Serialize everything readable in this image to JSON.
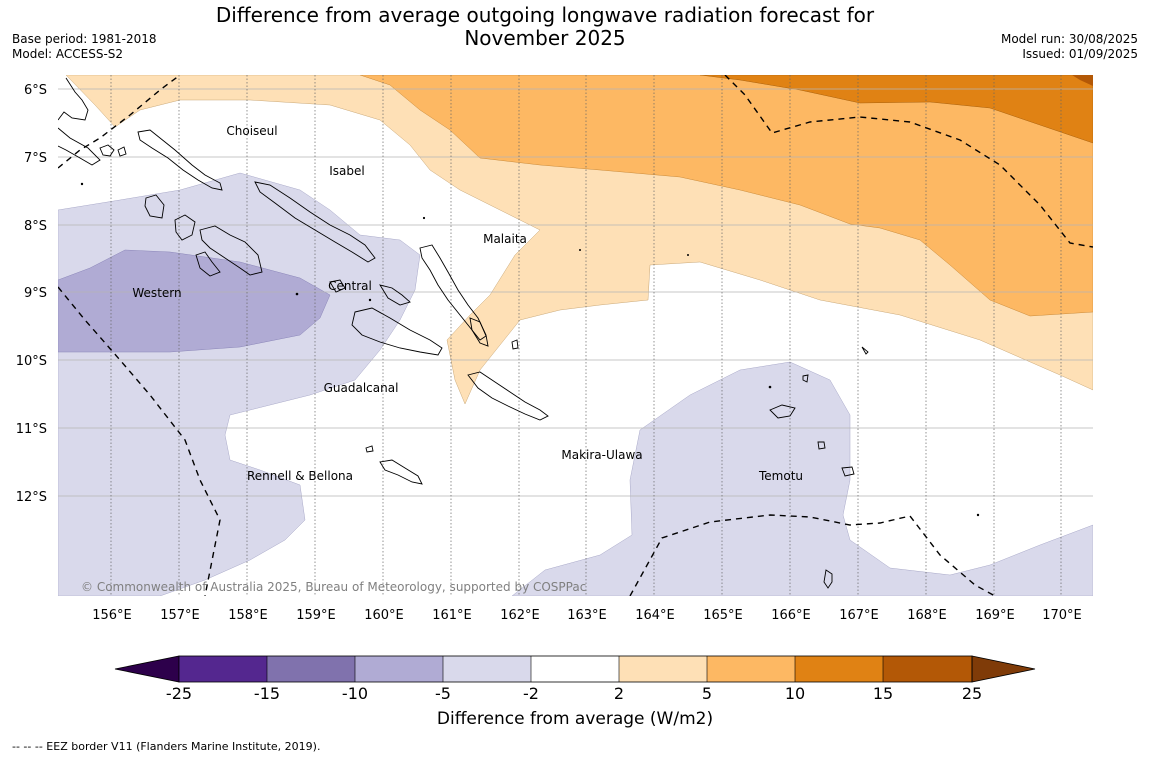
{
  "header": {
    "title_line1": "Difference from average outgoing longwave radiation forecast for",
    "title_line2": "November 2025",
    "base_period": "Base period: 1981-2018",
    "model": "Model: ACCESS-S2",
    "model_run": "Model run: 30/08/2025",
    "issued": "Issued: 01/09/2025"
  },
  "map": {
    "lat_labels": [
      "6°S",
      "7°S",
      "8°S",
      "9°S",
      "10°S",
      "11°S",
      "12°S"
    ],
    "lon_labels": [
      "156°E",
      "157°E",
      "158°E",
      "159°E",
      "160°E",
      "161°E",
      "162°E",
      "163°E",
      "164°E",
      "165°E",
      "166°E",
      "167°E",
      "168°E",
      "169°E",
      "170°E"
    ],
    "regions": [
      "Choiseul",
      "Isabel",
      "Malaita",
      "Western",
      "Central",
      "Guadalcanal",
      "Makira-Ulawa",
      "Rennell & Bellona",
      "Temotu"
    ],
    "credit": "© Commonwealth of Australia 2025, Bureau of Meteorology, supported by COSPPac"
  },
  "colorbar": {
    "ticks": [
      "-25",
      "-15",
      "-10",
      "-5",
      "-2",
      "2",
      "5",
      "10",
      "15",
      "25"
    ],
    "colors": [
      "#54278f",
      "#8072ad",
      "#b0abd4",
      "#d9d9eb",
      "#ffffff",
      "#fee0b6",
      "#fdb863",
      "#e08214",
      "#b35806"
    ],
    "under_color": "#2d004b",
    "over_color": "#7f3b08",
    "label": "Difference from average (W/m2)"
  },
  "legend": {
    "eez_note": "--  --  -- EEZ border V11 (Flanders Marine Institute, 2019)."
  }
}
